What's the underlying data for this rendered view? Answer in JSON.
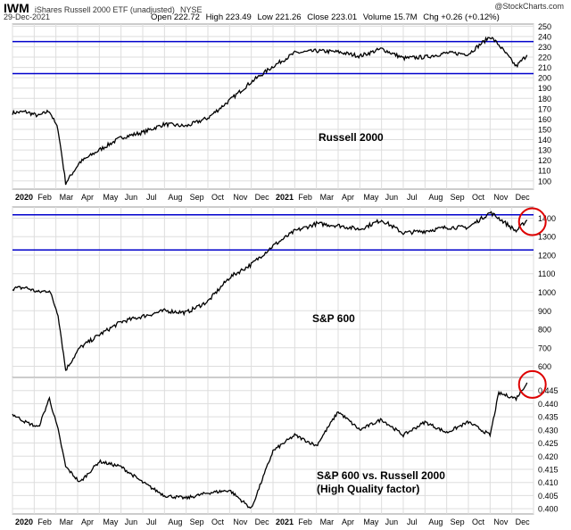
{
  "header": {
    "symbol": "IWM",
    "description": "iShares Russell 2000 ETF (unadjusted)",
    "exchange": "NYSE",
    "date": "29-Dec-2021",
    "watermark": "@StockCharts.com",
    "ohlc": {
      "open": "Open 222.72",
      "high": "High 223.49",
      "low": "Low 221.26",
      "close": "Close 223.01",
      "volume": "Volume 15.7M",
      "change": "Chg +0.26 (+0.12%)"
    }
  },
  "colors": {
    "price_line": "#000000",
    "support_lines": "#0000cc",
    "highlight_circle": "#dd0000",
    "grid": "#dddddd"
  },
  "chart_data": [
    {
      "type": "line",
      "title": "Russell 2000",
      "x": [
        "Dec-2019",
        "Jan-2020",
        "Feb-2020",
        "Feb-2020b",
        "Mar-2020",
        "Mar-2020b",
        "Apr-2020",
        "May-2020",
        "Jun-2020",
        "Jul-2020",
        "Aug-2020",
        "Sep-2020",
        "Oct-2020",
        "Nov-2020",
        "Dec-2020",
        "Jan-2021",
        "Feb-2021",
        "Mar-2021",
        "Apr-2021",
        "May-2021",
        "Jun-2021",
        "Jul-2021",
        "Aug-2021",
        "Sep-2021",
        "Oct-2021",
        "Nov-2021",
        "Nov-2021b",
        "Dec-2021",
        "Dec-2021b"
      ],
      "values": [
        166,
        167,
        163,
        168,
        150,
        98,
        118,
        130,
        142,
        147,
        155,
        153,
        161,
        178,
        196,
        211,
        224,
        226,
        225,
        221,
        228,
        219,
        220,
        224,
        223,
        240,
        232,
        211,
        222
      ],
      "ylim": [
        92,
        252
      ],
      "yticks": [
        100,
        110,
        120,
        130,
        140,
        150,
        160,
        170,
        180,
        190,
        200,
        210,
        220,
        230,
        240,
        250
      ],
      "hlines": [
        204,
        235
      ],
      "series_label": "Russell 2000"
    },
    {
      "type": "line",
      "title": "S&P 600",
      "x": [
        "Dec-2019",
        "Jan-2020",
        "Feb-2020",
        "Feb-2020b",
        "Mar-2020",
        "Mar-2020b",
        "Apr-2020",
        "May-2020",
        "Jun-2020",
        "Jul-2020",
        "Aug-2020",
        "Sep-2020",
        "Oct-2020",
        "Nov-2020",
        "Dec-2020",
        "Jan-2021",
        "Feb-2021",
        "Mar-2021",
        "Apr-2021",
        "May-2021",
        "Jun-2021",
        "Jul-2021",
        "Aug-2021",
        "Sep-2021",
        "Oct-2021",
        "Nov-2021",
        "Nov-2021b",
        "Dec-2021",
        "Dec-2021b"
      ],
      "values": [
        1020,
        1025,
        1000,
        1010,
        880,
        580,
        700,
        770,
        840,
        870,
        900,
        890,
        950,
        1080,
        1150,
        1250,
        1330,
        1370,
        1360,
        1340,
        1390,
        1320,
        1330,
        1350,
        1350,
        1430,
        1400,
        1330,
        1390
      ],
      "ylim": [
        540,
        1460
      ],
      "yticks": [
        600,
        700,
        800,
        900,
        1000,
        1100,
        1200,
        1300,
        1400
      ],
      "hlines": [
        1228,
        1418
      ],
      "series_label": "S&P 600"
    },
    {
      "type": "line",
      "title": "S&P 600 vs. Russell 2000",
      "subtitle": "(High Quality factor)",
      "x": [
        "Dec-2019",
        "Jan-2020",
        "Feb-2020",
        "Feb-2020b",
        "Mar-2020",
        "Mar-2020b",
        "Apr-2020",
        "May-2020",
        "Jun-2020",
        "Jul-2020",
        "Aug-2020",
        "Sep-2020",
        "Oct-2020",
        "Nov-2020",
        "Dec-2020",
        "Jan-2021",
        "Feb-2021",
        "Mar-2021",
        "Apr-2021",
        "May-2021",
        "Jun-2021",
        "Jul-2021",
        "Aug-2021",
        "Sep-2021",
        "Oct-2021",
        "Nov-2021",
        "Nov-2021b",
        "Dec-2021",
        "Dec-2021b"
      ],
      "values": [
        0.436,
        0.433,
        0.431,
        0.442,
        0.43,
        0.416,
        0.41,
        0.418,
        0.416,
        0.41,
        0.405,
        0.404,
        0.406,
        0.407,
        0.4,
        0.422,
        0.428,
        0.424,
        0.437,
        0.43,
        0.434,
        0.428,
        0.433,
        0.429,
        0.433,
        0.428,
        0.444,
        0.442,
        0.448
      ],
      "ylim": [
        0.398,
        0.45
      ],
      "yticks": [
        0.4,
        0.405,
        0.41,
        0.415,
        0.42,
        0.425,
        0.43,
        0.435,
        0.44,
        0.445
      ]
    }
  ],
  "x_axis": {
    "labels": [
      "2020",
      "Feb",
      "Mar",
      "Apr",
      "May",
      "Jun",
      "Jul",
      "Aug",
      "Sep",
      "Oct",
      "Nov",
      "Dec",
      "2021",
      "Feb",
      "Mar",
      "Apr",
      "May",
      "Jun",
      "Jul",
      "Aug",
      "Sep",
      "Oct",
      "Nov",
      "Dec"
    ]
  },
  "panel_labels": {
    "p1": "Russell 2000",
    "p2": "S&P 600",
    "p3_line1": "S&P 600 vs. Russell 2000",
    "p3_line2": "(High Quality factor)"
  }
}
